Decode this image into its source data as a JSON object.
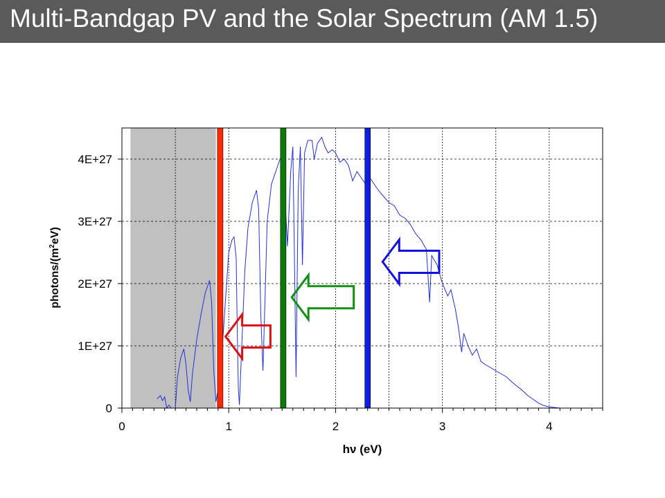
{
  "page": {
    "title": "Multi-Bandgap PV and the Solar Spectrum (AM 1.5)"
  },
  "chart_data": {
    "type": "line",
    "xlabel": "hν (eV)",
    "ylabel_main": "photons/(m",
    "ylabel_sup": "2",
    "ylabel_tail": "eV)",
    "xlim": [
      0,
      4.5
    ],
    "ylim": [
      0,
      4.5e+27
    ],
    "xticks": [
      0,
      1,
      2,
      3,
      4
    ],
    "yticks": [
      {
        "value": 0,
        "label": "0"
      },
      {
        "value": 1e+27,
        "label": "1E+27"
      },
      {
        "value": 2e+27,
        "label": "2E+27"
      },
      {
        "value": 3e+27,
        "label": "3E+27"
      },
      {
        "value": 4e+27,
        "label": "4E+27"
      }
    ],
    "grid": true,
    "shaded_region": {
      "x0": 0.08,
      "x1": 0.88,
      "color": "#c0c0c0"
    },
    "bandgaps": [
      {
        "name": "red-bandgap",
        "x": 0.92,
        "color": "#ff2a00"
      },
      {
        "name": "green-bandgap",
        "x": 1.51,
        "color": "#0a7a0a"
      },
      {
        "name": "blue-bandgap",
        "x": 2.3,
        "color": "#0a1fe0"
      }
    ],
    "arrows": [
      {
        "name": "red-arrow",
        "color": "#e01010",
        "x_from": 1.39,
        "x_to": 0.97,
        "y": 1.15e+27
      },
      {
        "name": "green-arrow",
        "color": "#109010",
        "x_from": 2.17,
        "x_to": 1.59,
        "y": 1.78e+27
      },
      {
        "name": "blue-arrow",
        "color": "#1010e0",
        "x_from": 2.97,
        "x_to": 2.44,
        "y": 2.35e+27
      }
    ],
    "series": [
      {
        "color": "#1f2fe0",
        "points": [
          [
            0.33,
            1.5e+26
          ],
          [
            0.36,
            2e+26
          ],
          [
            0.38,
            1.2e+26
          ],
          [
            0.4,
            1.8e+26
          ],
          [
            0.42,
            0.0
          ],
          [
            0.44,
            5e+25
          ],
          [
            0.46,
            0.0
          ],
          [
            0.5,
            0.0
          ],
          [
            0.52,
            5e+26
          ],
          [
            0.55,
            8e+26
          ],
          [
            0.58,
            9.5e+26
          ],
          [
            0.6,
            7e+26
          ],
          [
            0.62,
            3e+26
          ],
          [
            0.64,
            1e+26
          ],
          [
            0.66,
            5.5e+26
          ],
          [
            0.7,
            1.1e+27
          ],
          [
            0.74,
            1.5e+27
          ],
          [
            0.78,
            1.85e+27
          ],
          [
            0.82,
            2.05e+27
          ],
          [
            0.84,
            1.7e+27
          ],
          [
            0.86,
            6e+26
          ],
          [
            0.88,
            1e+26
          ],
          [
            0.92,
            5e+26
          ],
          [
            0.96,
            1.5e+27
          ],
          [
            1.0,
            2.5e+27
          ],
          [
            1.03,
            2.7e+27
          ],
          [
            1.05,
            2.75e+27
          ],
          [
            1.07,
            2.4e+27
          ],
          [
            1.08,
            1.2e+27
          ],
          [
            1.09,
            3e+26
          ],
          [
            1.1,
            5e+25
          ],
          [
            1.12,
            9e+26
          ],
          [
            1.15,
            2.2e+27
          ],
          [
            1.18,
            2.9e+27
          ],
          [
            1.22,
            3.3e+27
          ],
          [
            1.26,
            3.5e+27
          ],
          [
            1.28,
            3.2e+27
          ],
          [
            1.3,
            1.5e+27
          ],
          [
            1.32,
            6e+26
          ],
          [
            1.34,
            1.8e+27
          ],
          [
            1.36,
            3e+27
          ],
          [
            1.4,
            3.6e+27
          ],
          [
            1.44,
            3.8e+27
          ],
          [
            1.48,
            4e+27
          ],
          [
            1.5,
            4.05e+27
          ],
          [
            1.52,
            3.6e+27
          ],
          [
            1.55,
            2.6e+27
          ],
          [
            1.58,
            3.8e+27
          ],
          [
            1.6,
            4.2e+27
          ],
          [
            1.62,
            1.8e+27
          ],
          [
            1.63,
            5e+26
          ],
          [
            1.65,
            3.5e+27
          ],
          [
            1.67,
            4.2e+27
          ],
          [
            1.69,
            2.3e+27
          ],
          [
            1.71,
            4.1e+27
          ],
          [
            1.74,
            4.3e+27
          ],
          [
            1.78,
            4.3e+27
          ],
          [
            1.8,
            4e+27
          ],
          [
            1.83,
            4.25e+27
          ],
          [
            1.87,
            4.35e+27
          ],
          [
            1.9,
            4.2e+27
          ],
          [
            1.93,
            4.1e+27
          ],
          [
            1.97,
            4.15e+27
          ],
          [
            2.0,
            4.1e+27
          ],
          [
            2.04,
            3.95e+27
          ],
          [
            2.08,
            4e+27
          ],
          [
            2.12,
            3.9e+27
          ],
          [
            2.16,
            3.65e+27
          ],
          [
            2.2,
            3.8e+27
          ],
          [
            2.24,
            3.7e+27
          ],
          [
            2.28,
            3.6e+27
          ],
          [
            2.32,
            3.7e+27
          ],
          [
            2.36,
            3.6e+27
          ],
          [
            2.4,
            3.5e+27
          ],
          [
            2.45,
            3.4e+27
          ],
          [
            2.5,
            3.3e+27
          ],
          [
            2.55,
            3.25e+27
          ],
          [
            2.6,
            3.1e+27
          ],
          [
            2.65,
            3.05e+27
          ],
          [
            2.7,
            2.95e+27
          ],
          [
            2.75,
            2.8e+27
          ],
          [
            2.8,
            2.7e+27
          ],
          [
            2.85,
            2.55e+27
          ],
          [
            2.88,
            1.7e+27
          ],
          [
            2.9,
            2.45e+27
          ],
          [
            2.95,
            2.3e+27
          ],
          [
            3.0,
            2e+27
          ],
          [
            3.05,
            1.8e+27
          ],
          [
            3.08,
            1.9e+27
          ],
          [
            3.12,
            1.6e+27
          ],
          [
            3.15,
            1.3e+27
          ],
          [
            3.18,
            9e+26
          ],
          [
            3.2,
            1.2e+27
          ],
          [
            3.24,
            1e+27
          ],
          [
            3.28,
            8.5e+26
          ],
          [
            3.32,
            9.5e+26
          ],
          [
            3.36,
            7.5e+26
          ],
          [
            3.4,
            7e+26
          ],
          [
            3.45,
            6.5e+26
          ],
          [
            3.5,
            6e+26
          ],
          [
            3.55,
            5.5e+26
          ],
          [
            3.6,
            5e+26
          ],
          [
            3.65,
            4.2e+26
          ],
          [
            3.7,
            3.5e+26
          ],
          [
            3.75,
            2.8e+26
          ],
          [
            3.8,
            2e+26
          ],
          [
            3.85,
            1.4e+26
          ],
          [
            3.9,
            8e+25
          ],
          [
            3.95,
            4e+25
          ],
          [
            4.0,
            2e+25
          ],
          [
            4.05,
            1e+25
          ],
          [
            4.1,
            0.0
          ]
        ]
      }
    ]
  }
}
